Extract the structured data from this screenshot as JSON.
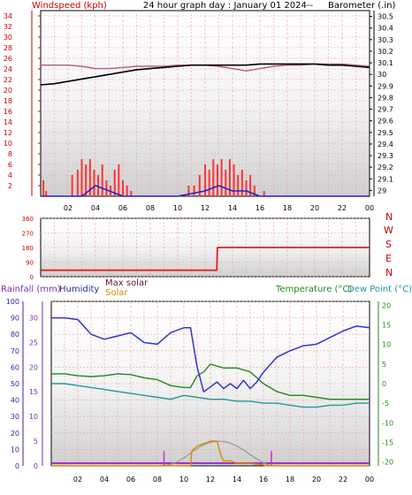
{
  "header": {
    "title": "24 hour graph day : January 01 2024--",
    "left_label": "Windspeed (kph)",
    "right_label": "Barometer (.in)"
  },
  "middle": {
    "directions": [
      "N",
      "W",
      "S",
      "E",
      "N"
    ]
  },
  "bottom": {
    "labels": {
      "rainfall": "Rainfall (mm)",
      "humidity": "Humidity",
      "max_solar": "Max solar",
      "solar": "Solar",
      "temperature": "Temperature (°C)",
      "dew_point": "Dew Point (°C)"
    }
  },
  "colors": {
    "rain": "#cc0033",
    "humidity": "#3333cc",
    "solar": "#dd8800",
    "max_solar": "#222222",
    "temperature": "#228822",
    "dew_point": "#229999",
    "barometer": "#000000",
    "windspeed": "#cc0000",
    "wind_gust": "#ff3333"
  },
  "chart_data": [
    {
      "type": "line",
      "name": "wind-barometer",
      "x_ticks": [
        "02",
        "04",
        "06",
        "08",
        "10",
        "12",
        "14",
        "16",
        "18",
        "20",
        "22",
        "00"
      ],
      "x_range": [
        0,
        24
      ],
      "y_left_ticks": [
        0,
        2,
        4,
        6,
        8,
        10,
        12,
        14,
        16,
        18,
        20,
        22,
        24,
        26,
        28,
        30,
        32,
        34
      ],
      "y_left_range": [
        0,
        35
      ],
      "y_left_labels": [
        "2",
        "4",
        "6",
        "8",
        "10",
        "12",
        "14",
        "16",
        "18",
        "20",
        "22",
        "24",
        "26",
        "28",
        "30",
        "32",
        "34"
      ],
      "y_right_labels": [
        "29",
        "29.1",
        "29.2",
        "29.3",
        "29.4",
        "29.5",
        "29.6",
        "29.7",
        "29.8",
        "29.9",
        "30",
        "30.1",
        "30.2",
        "30.3",
        "30.4",
        "30.5"
      ],
      "y_right_range": [
        28.95,
        30.55
      ],
      "barometer": {
        "x": [
          0,
          1,
          2,
          3,
          4,
          5,
          6,
          7,
          8,
          9,
          10,
          11,
          12,
          13,
          14,
          15,
          16,
          17,
          18,
          19,
          20,
          21,
          22,
          23,
          24
        ],
        "y": [
          29.91,
          29.92,
          29.94,
          29.96,
          29.98,
          30.0,
          30.02,
          30.04,
          30.05,
          30.06,
          30.07,
          30.08,
          30.08,
          30.08,
          30.08,
          30.08,
          30.09,
          30.09,
          30.09,
          30.09,
          30.09,
          30.08,
          30.08,
          30.07,
          30.06
        ]
      },
      "barometer_max": {
        "x": [
          0,
          1,
          2,
          3,
          4,
          5,
          6,
          7,
          8,
          9,
          10,
          11,
          12,
          13,
          14,
          15,
          16,
          17,
          18,
          19,
          20,
          21,
          22,
          23,
          24
        ],
        "y": [
          30.08,
          30.08,
          30.08,
          30.07,
          30.05,
          30.05,
          30.06,
          30.07,
          30.07,
          30.07,
          30.08,
          30.08,
          30.08,
          30.07,
          30.05,
          30.03,
          30.05,
          30.07,
          30.08,
          30.08,
          30.09,
          30.09,
          30.09,
          30.08,
          30.07
        ]
      },
      "wind_gust": {
        "x": [
          0.2,
          0.4,
          2.3,
          2.7,
          3.0,
          3.3,
          3.6,
          3.9,
          4.2,
          4.5,
          4.8,
          5.1,
          5.4,
          5.7,
          6.0,
          6.3,
          6.6,
          10.8,
          11.2,
          11.6,
          12.0,
          12.3,
          12.6,
          12.9,
          13.2,
          13.5,
          13.8,
          14.1,
          14.4,
          14.7,
          15.0,
          15.3,
          15.6,
          16.3
        ],
        "y": [
          3,
          1,
          4,
          5,
          7,
          6,
          7,
          5,
          4,
          6,
          3,
          2,
          5,
          6,
          3,
          2,
          1,
          2,
          2,
          4,
          6,
          5,
          7,
          6,
          7,
          5,
          7,
          6,
          4,
          5,
          3,
          4,
          2,
          1
        ]
      },
      "windspeed": {
        "x": [
          0,
          3,
          3.5,
          4,
          5,
          6,
          10,
          12,
          13,
          14,
          15,
          16,
          24
        ],
        "y": [
          0,
          0,
          1,
          2,
          1,
          0,
          0,
          1,
          2,
          1,
          1,
          0,
          0
        ]
      }
    },
    {
      "type": "line",
      "name": "wind-direction",
      "y_ticks": [
        0,
        90,
        180,
        270,
        360
      ],
      "y_range": [
        0,
        360
      ],
      "x_range": [
        0,
        24
      ],
      "direction": {
        "x": [
          0,
          12.85,
          12.9,
          24
        ],
        "y": [
          40,
          40,
          180,
          180
        ]
      }
    },
    {
      "type": "line",
      "name": "rain-humidity-solar-temperature",
      "x_ticks": [
        "02",
        "04",
        "06",
        "08",
        "10",
        "12",
        "14",
        "16",
        "18",
        "20",
        "22",
        "00"
      ],
      "x_range": [
        0,
        24
      ],
      "humidity_ticks": [
        0,
        10,
        20,
        30,
        40,
        50,
        60,
        70,
        80,
        90,
        100
      ],
      "humidity_range": [
        0,
        100
      ],
      "rain_ticks": [
        0,
        5,
        10,
        15,
        20,
        25,
        30
      ],
      "rain_range": [
        0,
        33.3
      ],
      "temperature_ticks": [
        -20,
        -15,
        -10,
        -5,
        0,
        5,
        10,
        15,
        20
      ],
      "temperature_range": [
        -21,
        21
      ],
      "humidity": {
        "x": [
          0,
          1,
          2,
          3,
          4,
          5,
          6,
          7,
          8,
          9,
          10,
          10.5,
          11,
          11.5,
          12,
          12.5,
          13,
          13.5,
          14,
          14.5,
          15,
          15.5,
          16,
          17,
          18,
          19,
          20,
          21,
          22,
          23,
          24
        ],
        "y": [
          90,
          90,
          89,
          80,
          77,
          79,
          81,
          75,
          74,
          81,
          84,
          84,
          60,
          45,
          48,
          51,
          47,
          50,
          47,
          52,
          47,
          51,
          57,
          66,
          70,
          73,
          74,
          78,
          82,
          85,
          84
        ]
      },
      "temperature": {
        "x": [
          0,
          1,
          2,
          3,
          4,
          5,
          6,
          7,
          8,
          9,
          10,
          10.5,
          11,
          11.5,
          12,
          13,
          14,
          15,
          16,
          17,
          18,
          19,
          20,
          21,
          22,
          23,
          24
        ],
        "y": [
          2.5,
          2.5,
          2,
          1.8,
          2,
          2.5,
          2.3,
          1.5,
          1,
          -0.5,
          -1,
          -1,
          2,
          3,
          5,
          4,
          4,
          3,
          0,
          -2,
          -3,
          -3,
          -3.5,
          -4,
          -4,
          -4,
          -4
        ]
      },
      "dew_point": {
        "x": [
          0,
          1,
          2,
          3,
          4,
          5,
          6,
          7,
          8,
          9,
          10,
          11,
          12,
          13,
          14,
          15,
          16,
          17,
          18,
          19,
          20,
          21,
          22,
          23,
          24
        ],
        "y": [
          0,
          0,
          -0.5,
          -1,
          -1.5,
          -2,
          -2.5,
          -3,
          -3.5,
          -4,
          -3,
          -3.5,
          -4,
          -4,
          -4.5,
          -4.5,
          -5,
          -5,
          -5.5,
          -6,
          -6,
          -5.5,
          -5.5,
          -5,
          -5
        ]
      },
      "solar": {
        "x": [
          0,
          10.5,
          10.6,
          11,
          11.5,
          12,
          12.5,
          12.8,
          13,
          13.5,
          14,
          14.5,
          15,
          15.5,
          16,
          16.1,
          24
        ],
        "y": [
          0,
          0,
          3,
          4,
          4.5,
          5,
          5,
          2,
          1,
          1,
          0.5,
          0.5,
          0.5,
          0.3,
          0.2,
          0,
          0
        ]
      },
      "max_solar": {
        "x": [
          8.5,
          9,
          9.5,
          10,
          10.5,
          11,
          11.5,
          12,
          12.5,
          13,
          13.5,
          14,
          14.5,
          15,
          15.5,
          16,
          16.5
        ],
        "y": [
          0,
          0.3,
          0.8,
          1.6,
          2.6,
          3.5,
          4.3,
          4.8,
          5,
          4.9,
          4.6,
          4,
          3.2,
          2.3,
          1.4,
          0.6,
          0
        ]
      },
      "rain_markers": {
        "x": [
          8.5,
          16.6
        ],
        "y": [
          3,
          3
        ]
      }
    }
  ]
}
